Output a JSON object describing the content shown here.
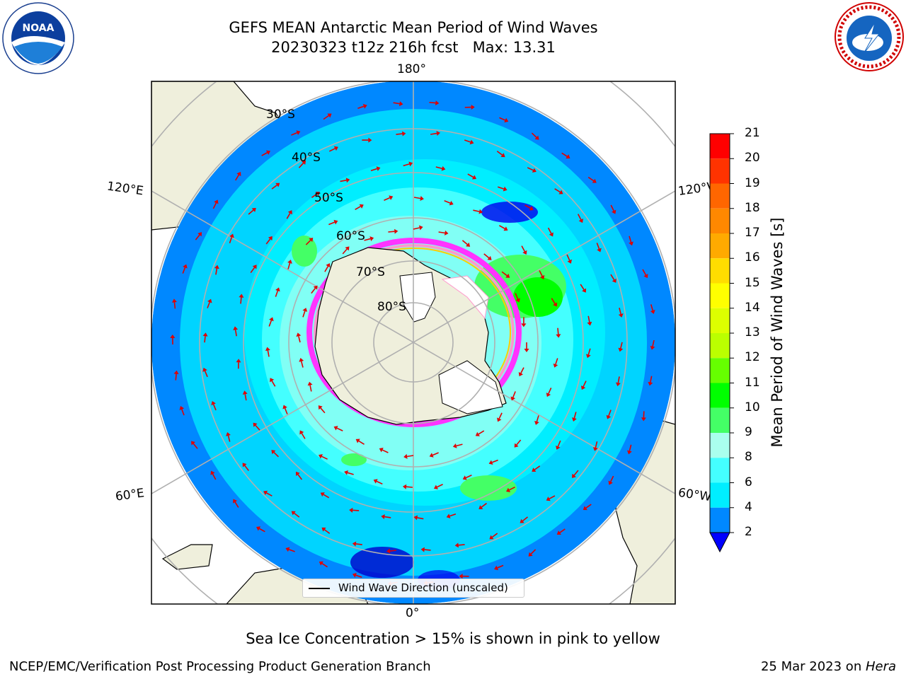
{
  "header": {
    "title_line1": "GEFS MEAN Antarctic Mean Period of Wind Waves",
    "title_line2": "20230323 t12z 216h fcst   Max: 13.31"
  },
  "map": {
    "projection": "south-polar-stereographic",
    "longitude_labels": [
      "180°",
      "120°E",
      "120°W",
      "60°E",
      "60°W",
      "0°"
    ],
    "latitude_labels": [
      "30°S",
      "40°S",
      "50°S",
      "60°S",
      "70°S",
      "80°S"
    ],
    "legend_entry": "Wind Wave Direction (unscaled)",
    "arrow_color": "#e00000",
    "land_color": "#efefdc",
    "ice_colors": [
      "#ff33ff",
      "#ff99cc",
      "#ffcc00"
    ]
  },
  "colorbar": {
    "label": "Mean Period of Wind Waves [s]",
    "ticks": [
      "21",
      "20",
      "19",
      "18",
      "17",
      "16",
      "15",
      "14",
      "13",
      "12",
      "11",
      "10",
      "9",
      "8",
      "6",
      "4",
      "2"
    ],
    "bands": [
      {
        "from": 20,
        "to": 21,
        "color": "#ff0000"
      },
      {
        "from": 19,
        "to": 20,
        "color": "#ff3300"
      },
      {
        "from": 18,
        "to": 19,
        "color": "#ff6600"
      },
      {
        "from": 17,
        "to": 18,
        "color": "#ff8800"
      },
      {
        "from": 16,
        "to": 17,
        "color": "#ffaa00"
      },
      {
        "from": 15,
        "to": 16,
        "color": "#ffdd00"
      },
      {
        "from": 14,
        "to": 15,
        "color": "#ffff00"
      },
      {
        "from": 13,
        "to": 14,
        "color": "#ddff00"
      },
      {
        "from": 12,
        "to": 13,
        "color": "#bbff00"
      },
      {
        "from": 11,
        "to": 12,
        "color": "#66ff00"
      },
      {
        "from": 10,
        "to": 11,
        "color": "#00ff00"
      },
      {
        "from": 9,
        "to": 10,
        "color": "#44ff66"
      },
      {
        "from": 8,
        "to": 9,
        "color": "#aaffee"
      },
      {
        "from": 6,
        "to": 8,
        "color": "#44ffff"
      },
      {
        "from": 4,
        "to": 6,
        "color": "#00eeff"
      },
      {
        "from": 2,
        "to": 4,
        "color": "#0088ff"
      }
    ],
    "extend_color": "#0000ff"
  },
  "subtitle": "Sea Ice Concentration > 15% is shown in pink to yellow",
  "footer": {
    "left": "NCEP/EMC/Verification Post Processing Product Generation Branch",
    "right_prefix": "25 Mar 2023 on ",
    "right_machine": "Hera"
  },
  "logos": {
    "left_text": "NOAA",
    "right_text": "NATIONAL WEATHER SERVICE"
  }
}
